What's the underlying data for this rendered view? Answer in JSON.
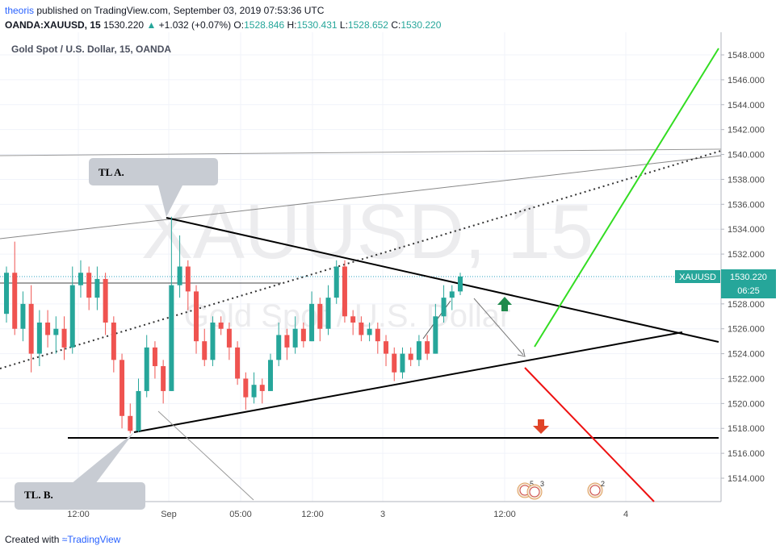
{
  "header": {
    "author": "theoris",
    "published_text": "published on TradingView.com, September 03, 2019 07:53:36 UTC",
    "symbol": "OANDA:XAUUSD, 15",
    "last": "1530.220",
    "change": "+1.032 (+0.07%)",
    "open_label": "O:",
    "open": "1528.846",
    "high_label": "H:",
    "high": "1530.431",
    "low_label": "L:",
    "low": "1528.652",
    "close_label": "C:",
    "close": "1530.220"
  },
  "chart_title": "Gold Spot / U.S. Dollar, 15, OANDA",
  "watermark": {
    "symbol": "XAUUSD, 15",
    "name": "Gold Spot / U.S. Dollar"
  },
  "annotations": {
    "tl_a": "TL A.",
    "tl_b": "TL. B."
  },
  "price_tag": {
    "symbol": "XAUUSD",
    "price": "1530.220",
    "countdown": "06:25"
  },
  "events": [
    {
      "count": "5"
    },
    {
      "count": "3"
    },
    {
      "count": "2"
    }
  ],
  "footer": {
    "created_with": "Created with",
    "brand": "TradingView"
  },
  "colors": {
    "up": "#26a69a",
    "down": "#ef5350",
    "tag": "#26a69a",
    "green_line": "#33dd22",
    "red_line": "#ee1111",
    "arrow_up": "#1f8a4c",
    "arrow_down": "#e04428"
  },
  "chart_data": {
    "type": "candlestick",
    "title": "Gold Spot / U.S. Dollar, 15, OANDA",
    "y_ticks": [
      "1514.000",
      "1516.000",
      "1518.000",
      "1520.000",
      "1522.000",
      "1524.000",
      "1526.000",
      "1528.000",
      "1530.000",
      "1532.000",
      "1534.000",
      "1536.000",
      "1538.000",
      "1540.000",
      "1542.000",
      "1544.000",
      "1546.000",
      "1548.000"
    ],
    "y_range": [
      1512.2,
      1550.9
    ],
    "x_ticks": [
      "12:00",
      "Sep",
      "05:00",
      "12:00",
      "3",
      "12:00",
      "4"
    ],
    "grid": true,
    "last_price": 1530.22,
    "candles_approx": [
      [
        1527.2,
        1530.5,
        1526.5,
        1531.0
      ],
      [
        1530.5,
        1526.0,
        1525.5,
        1533.0
      ],
      [
        1526.0,
        1528.0,
        1525.0,
        1529.0
      ],
      [
        1528.0,
        1524.0,
        1522.5,
        1529.5
      ],
      [
        1524.0,
        1526.5,
        1523.0,
        1527.5
      ],
      [
        1526.5,
        1525.5,
        1524.5,
        1527.5
      ],
      [
        1525.5,
        1526.0,
        1524.0,
        1527.0
      ],
      [
        1526.0,
        1524.5,
        1523.5,
        1527.0
      ],
      [
        1524.5,
        1529.5,
        1524.0,
        1531.0
      ],
      [
        1529.5,
        1530.5,
        1528.5,
        1531.5
      ],
      [
        1530.5,
        1528.5,
        1527.5,
        1531.0
      ],
      [
        1528.5,
        1530.0,
        1527.5,
        1531.0
      ],
      [
        1530.0,
        1526.5,
        1525.5,
        1530.5
      ],
      [
        1526.5,
        1523.5,
        1522.5,
        1527.0
      ],
      [
        1523.5,
        1519.0,
        1518.0,
        1524.0
      ],
      [
        1519.0,
        1517.8,
        1517.6,
        1520.0
      ],
      [
        1517.8,
        1521.0,
        1517.7,
        1522.0
      ],
      [
        1521.0,
        1524.5,
        1520.5,
        1525.5
      ],
      [
        1524.5,
        1523.0,
        1522.0,
        1525.0
      ],
      [
        1523.0,
        1521.0,
        1520.0,
        1523.5
      ],
      [
        1521.0,
        1529.5,
        1521.0,
        1535.0
      ],
      [
        1529.5,
        1531.0,
        1528.5,
        1533.5
      ],
      [
        1531.0,
        1529.0,
        1527.5,
        1531.5
      ],
      [
        1529.0,
        1525.0,
        1524.0,
        1529.5
      ],
      [
        1525.0,
        1523.5,
        1523.0,
        1526.0
      ],
      [
        1523.5,
        1526.5,
        1523.0,
        1527.0
      ],
      [
        1526.5,
        1526.0,
        1525.5,
        1527.0
      ],
      [
        1526.0,
        1524.5,
        1523.5,
        1526.5
      ],
      [
        1524.5,
        1522.0,
        1521.5,
        1525.0
      ],
      [
        1522.0,
        1520.5,
        1519.5,
        1522.5
      ],
      [
        1520.5,
        1521.5,
        1520.0,
        1522.5
      ],
      [
        1521.5,
        1521.0,
        1520.0,
        1522.0
      ],
      [
        1521.0,
        1523.5,
        1521.0,
        1524.0
      ],
      [
        1523.5,
        1525.5,
        1523.0,
        1526.5
      ],
      [
        1525.5,
        1524.5,
        1523.5,
        1526.0
      ],
      [
        1524.5,
        1526.0,
        1524.0,
        1527.0
      ],
      [
        1526.0,
        1525.0,
        1524.5,
        1526.5
      ],
      [
        1525.0,
        1528.0,
        1525.0,
        1529.0
      ],
      [
        1528.0,
        1526.0,
        1525.0,
        1528.5
      ],
      [
        1526.0,
        1528.5,
        1525.5,
        1529.5
      ],
      [
        1528.5,
        1531.0,
        1528.0,
        1531.5
      ],
      [
        1531.0,
        1527.0,
        1526.5,
        1531.5
      ],
      [
        1527.0,
        1526.5,
        1525.5,
        1527.5
      ],
      [
        1526.5,
        1525.5,
        1525.0,
        1527.0
      ],
      [
        1525.5,
        1526.0,
        1525.0,
        1526.5
      ],
      [
        1526.0,
        1525.0,
        1524.0,
        1526.5
      ],
      [
        1525.0,
        1524.0,
        1523.0,
        1525.5
      ],
      [
        1524.0,
        1522.5,
        1521.8,
        1524.5
      ],
      [
        1522.5,
        1524.0,
        1522.0,
        1524.5
      ],
      [
        1524.0,
        1523.5,
        1523.0,
        1524.5
      ],
      [
        1523.5,
        1525.0,
        1523.0,
        1525.5
      ],
      [
        1525.0,
        1524.0,
        1523.5,
        1525.5
      ],
      [
        1524.0,
        1527.0,
        1524.0,
        1528.0
      ],
      [
        1527.0,
        1528.5,
        1526.5,
        1529.5
      ],
      [
        1528.5,
        1529.0,
        1527.5,
        1529.5
      ],
      [
        1529.0,
        1530.2,
        1528.7,
        1530.5
      ]
    ],
    "trend_lines": [
      {
        "name": "TL A."
      },
      {
        "name": "TL. B."
      }
    ],
    "horizontal_levels": [
      1517.3,
      1530.0
    ]
  }
}
